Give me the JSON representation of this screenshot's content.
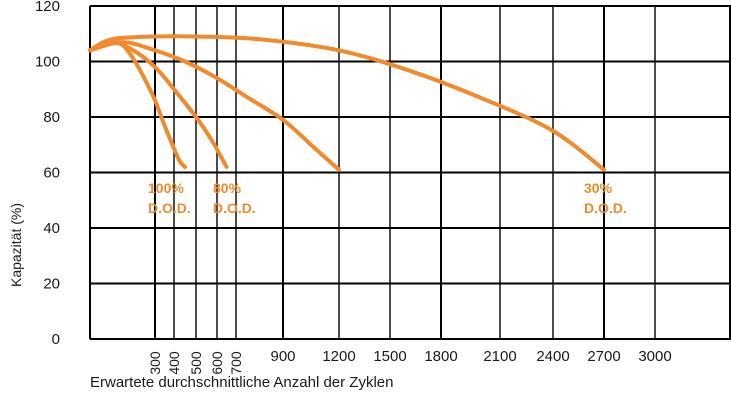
{
  "chart_data": {
    "type": "line",
    "title": "",
    "xlabel": "Erwartete durchschnittliche Anzahl der Zyklen",
    "ylabel": "Kapazität (%)",
    "ylim": [
      0,
      120
    ],
    "y_ticks": [
      0,
      20,
      40,
      60,
      80,
      100,
      120
    ],
    "x_ticks_rotated": [
      "300",
      "400",
      "500",
      "600",
      "700"
    ],
    "x_ticks": [
      "900",
      "1200",
      "1500",
      "1800",
      "2100",
      "2400",
      "2700",
      "3000"
    ],
    "grid": true,
    "colors": {
      "curve": "#f08a2c",
      "grid": "#000000",
      "text": "#1a1a1a"
    },
    "series": [
      {
        "label_lines": [
          "100%",
          "D.O.D."
        ],
        "x": [
          0,
          100,
          150,
          200,
          250,
          300,
          350,
          420,
          450
        ],
        "y": [
          104,
          107,
          106,
          101,
          94,
          86,
          77,
          65,
          62
        ]
      },
      {
        "label_lines": [
          "80%",
          "D.O.D."
        ],
        "x": [
          0,
          100,
          200,
          300,
          400,
          500,
          580,
          650
        ],
        "y": [
          104,
          107,
          104,
          98,
          90,
          80,
          71,
          62
        ]
      },
      {
        "label_lines": [
          "",
          ""
        ],
        "x": [
          0,
          150,
          300,
          450,
          600,
          750,
          900,
          1050,
          1200
        ],
        "y": [
          104,
          107,
          104,
          100,
          94,
          87,
          79,
          70,
          61
        ]
      },
      {
        "label_lines": [
          "30%",
          "D.O.D."
        ],
        "x": [
          0,
          100,
          300,
          500,
          800,
          1200,
          1600,
          2000,
          2400,
          2700
        ],
        "y": [
          104,
          108,
          109,
          109,
          108,
          104,
          97,
          87,
          75,
          61
        ]
      }
    ]
  }
}
